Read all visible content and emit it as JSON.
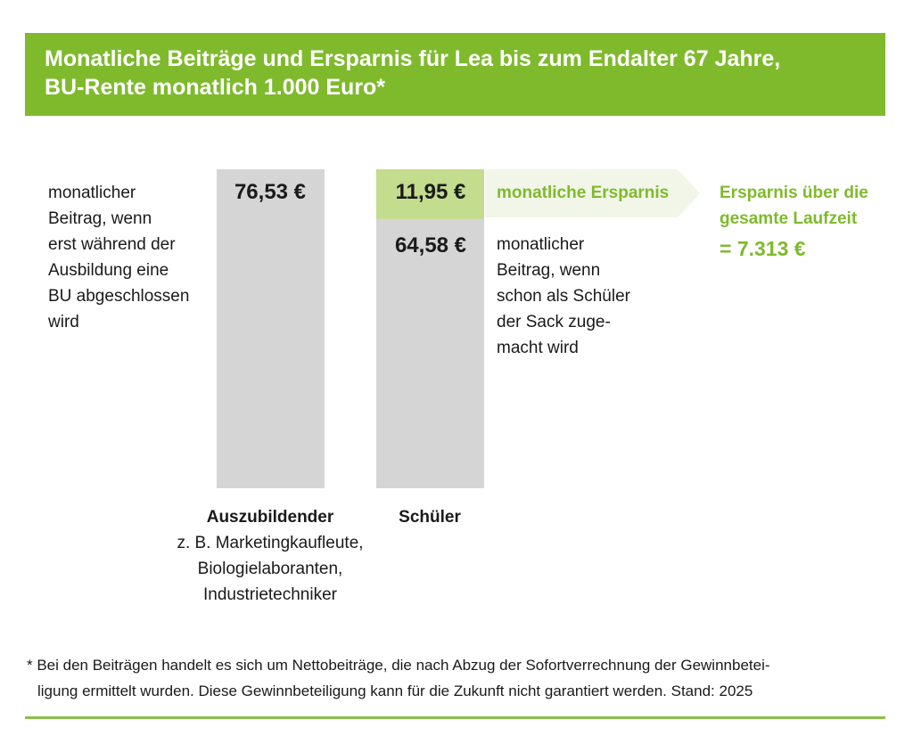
{
  "title": {
    "line1": "Monatliche Beiträge und Ersparnis für Lea bis zum Endalter 67 Jahre,",
    "line2": "BU-Rente monatlich 1.000 Euro*"
  },
  "chart_data": {
    "type": "bar",
    "categories": [
      "Auszubildender",
      "Schüler"
    ],
    "series": [
      {
        "values": [
          76.53,
          64.58
        ]
      },
      {
        "values": [
          0,
          11.95
        ]
      }
    ],
    "value_labels": {
      "azubi": "76,53 €",
      "schueler_savings": "11,95 €",
      "schueler_base": "64,58 €"
    },
    "colors": {
      "bar": "#d5d5d5",
      "savings": "#c3dc8e",
      "accent": "#7fba2c",
      "arrow": "#f1f6e8"
    }
  },
  "annotations": {
    "left_note": [
      "monatlicher",
      "Beitrag, wenn",
      "erst während der",
      "Ausbildung eine",
      "BU abgeschlossen",
      "wird"
    ],
    "right_note": [
      "monatlicher",
      "Beitrag, wenn",
      "schon als Schüler",
      "der Sack zuge-",
      "macht wird"
    ],
    "savings_arrow": "monatliche Ersparnis",
    "total_savings": {
      "line1": "Ersparnis über die",
      "line2": "gesamte Laufzeit",
      "value": "= 7.313 €"
    }
  },
  "categories_labels": {
    "azubi": {
      "name": "Auszubildender",
      "sub": [
        "z. B. Marketingkaufleute,",
        "Biologielaboranten,",
        "Industrietechniker"
      ]
    },
    "schueler": {
      "name": "Schüler"
    }
  },
  "footnote": {
    "line1": "* Bei den Beiträgen handelt es sich um Nettobeiträge, die nach Abzug der Sofortverrechnung der Gewinnbetei-",
    "line2": "ligung ermittelt wurden. Diese Gewinnbeteiligung kann für die Zukunft nicht garantiert werden. Stand: 2025"
  }
}
